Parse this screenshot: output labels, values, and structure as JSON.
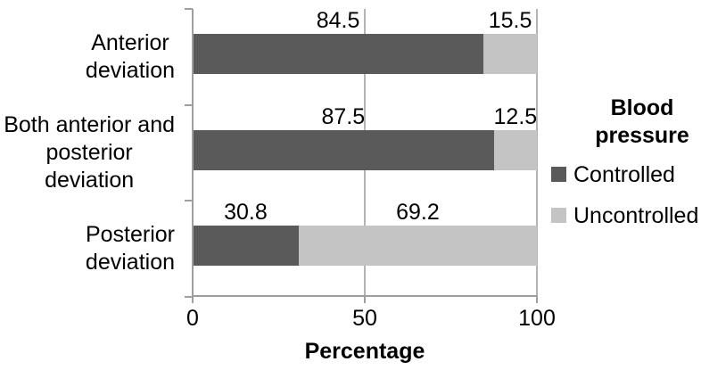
{
  "chart_data": {
    "type": "bar",
    "stacked": true,
    "orientation": "horizontal",
    "categories": [
      "Anterior\ndeviation",
      "Both anterior and\nposterior\ndeviation",
      "Posterior\ndeviation"
    ],
    "series": [
      {
        "name": "Controlled",
        "color": "#5a5a5a",
        "values": [
          84.5,
          87.5,
          30.8
        ]
      },
      {
        "name": "Uncontrolled",
        "color": "#c4c4c4",
        "values": [
          15.5,
          12.5,
          69.2
        ]
      }
    ],
    "value_labels_shown": true,
    "xlabel": "Percentage",
    "x_ticks": [
      0,
      50,
      100
    ],
    "xlim": [
      0,
      100
    ],
    "legend": {
      "title": "Blood\npressure",
      "position": "right",
      "entries": [
        "Controlled",
        "Uncontrolled"
      ]
    },
    "grid": "vertical-major",
    "axis_color": "#9e9e9e",
    "gridline_color": "#b4b4b4",
    "text_color": "#000000",
    "background": "#ffffff"
  }
}
